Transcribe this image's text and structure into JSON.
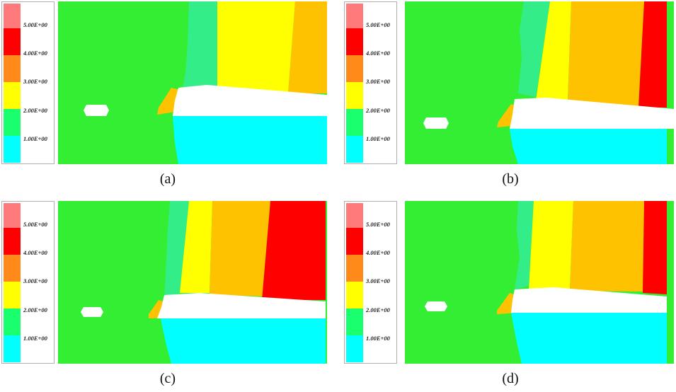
{
  "colors": {
    "c0": "#00ffff",
    "c1": "#1aff6e",
    "c2": "#ffff00",
    "c3": "#ff8a1a",
    "c4": "#ff0000",
    "c5": "#ff7a7a",
    "ground": "#33ee33",
    "orange": "#ffc200",
    "teal": "#33ee88",
    "hole": "#ffffff"
  },
  "legend": {
    "labels": [
      "5.00E+00",
      "4.00E+00",
      "3.00E+00",
      "2.00E+00",
      "1.00E+00"
    ]
  },
  "panels": [
    {
      "caption": "(a)"
    },
    {
      "caption": "(b)"
    },
    {
      "caption": "(c)"
    },
    {
      "caption": "(d)"
    }
  ]
}
